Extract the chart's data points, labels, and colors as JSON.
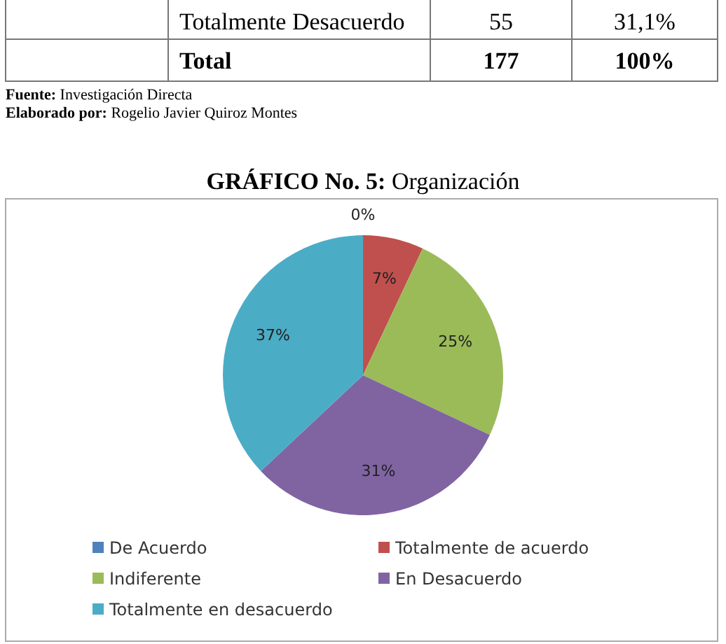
{
  "chart_data": {
    "type": "pie",
    "title": "GRÁFICO No. 5: Organización",
    "categories": [
      "De Acuerdo",
      "Totalmente de acuerdo",
      "Indiferente",
      "En Desacuerdo",
      "Totalmente en desacuerdo"
    ],
    "values": [
      0,
      7,
      25,
      31,
      37
    ],
    "colors": [
      "#4f81bd",
      "#c0504d",
      "#9bbb59",
      "#8064a2",
      "#4bacc6"
    ],
    "data_labels": true,
    "value_labels": [
      "0%",
      "7%",
      "25%",
      "31%",
      "37%"
    ],
    "legend": "bottom",
    "annotations": [
      "Totalmente Desacuerdo",
      "55",
      "31,1%",
      "Total",
      "177",
      "100%",
      "Fuente: Investigación Directa",
      "Elaborado por: Rogelio Javier Quiroz Montes"
    ]
  }
}
